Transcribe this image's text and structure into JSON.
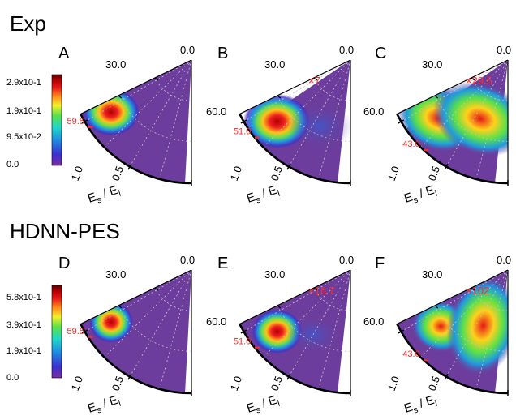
{
  "row_labels": {
    "top": "Exp",
    "bottom": "HDNN-PES"
  },
  "colorbars": {
    "top": [
      "2.9x10-1",
      "1.9x10-1",
      "9.5x10-2",
      "0.0"
    ],
    "bottom": [
      "5.8x10-1",
      "3.9x10-1",
      "1.9x10-1",
      "0.0"
    ]
  },
  "colormap": [
    "#7a2e9e",
    "#3b2fd0",
    "#1e8de0",
    "#20d8c8",
    "#5be04a",
    "#f3f02a",
    "#ff8a1a",
    "#e61818",
    "#b00000",
    "#5a0000"
  ],
  "background_color": "#6c3d9c",
  "panels": [
    {
      "letter": "A",
      "angle_labels": [
        "30.0",
        "0.0"
      ],
      "energy_labels": [
        "1.0",
        "0.5"
      ],
      "axis_title_main": "E",
      "axis_sub_s": "s",
      "axis_slash": " / ",
      "axis_sub_i": "i",
      "red_angle": "59.5",
      "scale": ""
    },
    {
      "letter": "B",
      "angle_labels": [
        "30.0",
        "0.0",
        "60.0"
      ],
      "energy_labels": [
        "1.0",
        "0.5"
      ],
      "axis_title_main": "E",
      "axis_sub_s": "s",
      "axis_slash": " / ",
      "axis_sub_i": "i",
      "red_angle": "51.0",
      "scale": "×7"
    },
    {
      "letter": "C",
      "angle_labels": [
        "30.0",
        "0.0",
        "60.0"
      ],
      "energy_labels": [
        "1.0",
        "0.5"
      ],
      "axis_title_main": "E",
      "axis_sub_s": "s",
      "axis_slash": " / ",
      "axis_sub_i": "i",
      "red_angle": "43.0",
      "scale": "×29.5"
    },
    {
      "letter": "D",
      "angle_labels": [
        "30.0",
        "0.0"
      ],
      "energy_labels": [
        "1.0",
        "0.5"
      ],
      "axis_title_main": "E",
      "axis_sub_s": "s",
      "axis_slash": " / ",
      "axis_sub_i": "i",
      "red_angle": "59.5",
      "scale": ""
    },
    {
      "letter": "E",
      "angle_labels": [
        "30.0",
        "0.0",
        "60.0"
      ],
      "energy_labels": [
        "1.0",
        "0.5"
      ],
      "axis_title_main": "E",
      "axis_sub_s": "s",
      "axis_slash": " / ",
      "axis_sub_i": "i",
      "red_angle": "51.0",
      "scale": "×16.7"
    },
    {
      "letter": "F",
      "angle_labels": [
        "30.0",
        "0.0",
        "60.0"
      ],
      "energy_labels": [
        "1.0",
        "0.5"
      ],
      "axis_title_main": "E",
      "axis_sub_s": "s",
      "axis_slash": " / ",
      "axis_sub_i": "i",
      "red_angle": "43.0",
      "scale": "×102"
    }
  ]
}
